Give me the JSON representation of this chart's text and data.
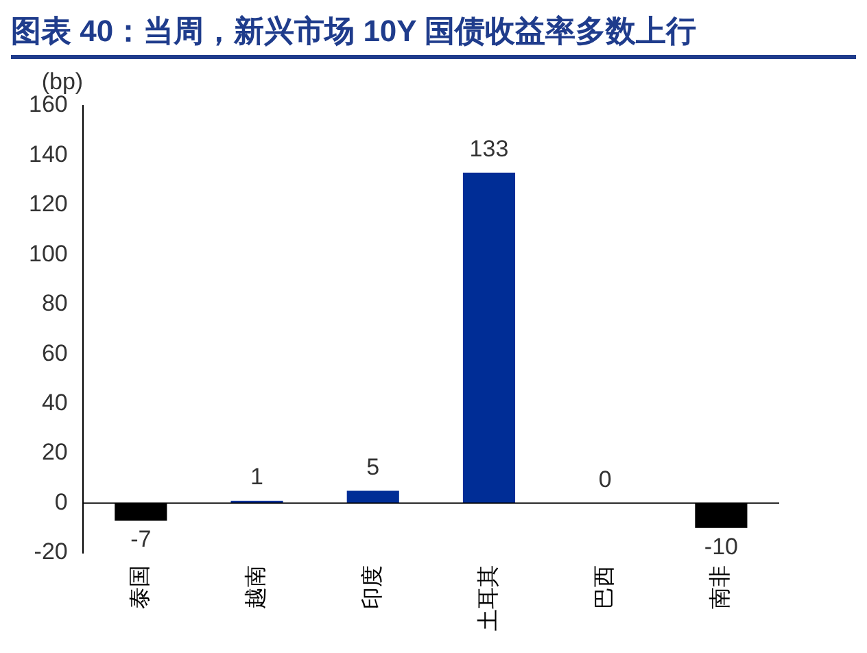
{
  "chart_data": {
    "type": "bar",
    "title": "图表 40：当周，新兴市场 10Y 国债收益率多数上行",
    "ylabel": "(bp)",
    "categories": [
      "泰国",
      "越南",
      "印度",
      "土耳其",
      "巴西",
      "南非"
    ],
    "values": [
      -7,
      1,
      5,
      133,
      0,
      -10
    ],
    "colors": [
      "#000000",
      "#002d96",
      "#002d96",
      "#002d96",
      "#002d96",
      "#000000"
    ],
    "ylim": [
      -20,
      160
    ],
    "yticks": [
      -20,
      0,
      20,
      40,
      60,
      80,
      100,
      120,
      140,
      160
    ],
    "data_labels": true,
    "legend": false
  }
}
